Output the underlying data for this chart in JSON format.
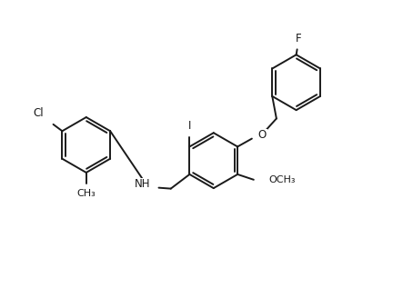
{
  "bg_color": "#ffffff",
  "line_color": "#1a1a1a",
  "line_width": 1.4,
  "font_size": 8.5,
  "figsize": [
    4.43,
    3.17
  ],
  "dpi": 100,
  "xlim": [
    0,
    8.86
  ],
  "ylim": [
    0,
    6.34
  ]
}
